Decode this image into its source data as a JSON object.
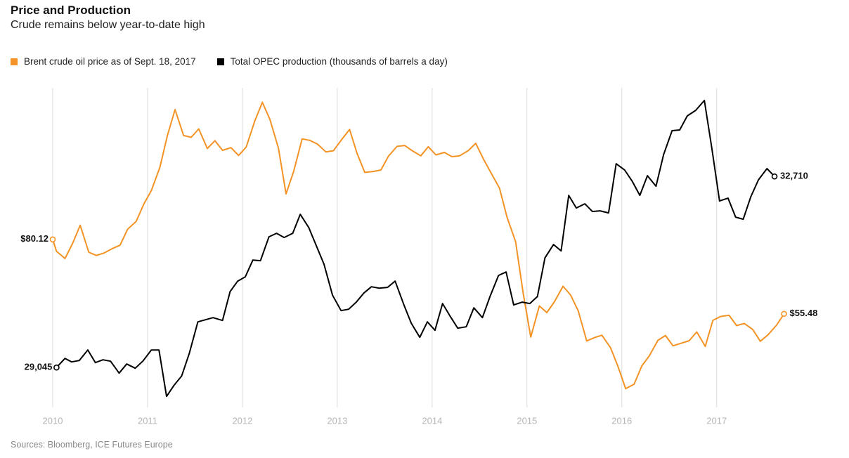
{
  "chart_data": {
    "type": "line",
    "title": "Price and Production",
    "subtitle": "Crude remains below year-to-date high",
    "source": "Sources: Bloomberg, ICE Futures Europe",
    "xlim": [
      2010,
      2017.78
    ],
    "xticks": [
      2010,
      2011,
      2012,
      2013,
      2014,
      2015,
      2016,
      2017
    ],
    "ylim": [
      24.5,
      130.3
    ],
    "y2lim": [
      28280,
      34410
    ],
    "grid": true,
    "legend": "top-left",
    "series": [
      {
        "name": "Brent crude oil price as of Sept. 18, 2017",
        "color": "#f39325",
        "x": [
          2010,
          2010.04,
          2010.13,
          2010.21,
          2010.29,
          2010.38,
          2010.46,
          2010.54,
          2010.63,
          2010.71,
          2010.79,
          2010.88,
          2010.96,
          2011.04,
          2011.13,
          2011.21,
          2011.29,
          2011.38,
          2011.46,
          2011.54,
          2011.63,
          2011.71,
          2011.79,
          2011.88,
          2011.96,
          2012.04,
          2012.13,
          2012.21,
          2012.29,
          2012.38,
          2012.46,
          2012.54,
          2012.63,
          2012.71,
          2012.79,
          2012.88,
          2012.96,
          2013.04,
          2013.13,
          2013.21,
          2013.29,
          2013.38,
          2013.46,
          2013.54,
          2013.63,
          2013.71,
          2013.79,
          2013.88,
          2013.96,
          2014.04,
          2014.13,
          2014.21,
          2014.29,
          2014.38,
          2014.46,
          2014.54,
          2014.63,
          2014.71,
          2014.79,
          2014.88,
          2014.96,
          2015.04,
          2015.13,
          2015.21,
          2015.29,
          2015.38,
          2015.46,
          2015.54,
          2015.63,
          2015.71,
          2015.79,
          2015.88,
          2015.96,
          2016.04,
          2016.13,
          2016.21,
          2016.29,
          2016.38,
          2016.46,
          2016.54,
          2016.63,
          2016.71,
          2016.79,
          2016.88,
          2016.96,
          2017.04,
          2017.13,
          2017.21,
          2017.29,
          2017.38,
          2017.46,
          2017.54,
          2017.63,
          2017.71
        ],
        "values": [
          80.12,
          76.2,
          73.8,
          78.8,
          84.8,
          75.9,
          74.8,
          75.6,
          77.1,
          78.2,
          83.5,
          86.1,
          91.8,
          96.3,
          104,
          114.6,
          123.1,
          114.5,
          113.9,
          116.7,
          110.2,
          112.8,
          109.6,
          110.5,
          107.9,
          110.7,
          119.3,
          125.5,
          119.8,
          110.3,
          95.2,
          102.6,
          113.4,
          112.9,
          111.7,
          109.1,
          109.5,
          112.9,
          116.5,
          108.5,
          102.3,
          102.6,
          103.1,
          107.7,
          110.9,
          111.2,
          109.5,
          107.8,
          110.8,
          108.1,
          108.9,
          107.5,
          107.8,
          109.5,
          111.9,
          106.8,
          101.6,
          97.1,
          87.4,
          79.4,
          62.3,
          47.8,
          58.1,
          55.9,
          59.5,
          64.6,
          61.7,
          56.5,
          46.5,
          47.6,
          48.4,
          44.3,
          38.0,
          30.7,
          32.2,
          38.2,
          41.6,
          46.7,
          48.3,
          44.9,
          45.8,
          46.6,
          49.5,
          44.7,
          53.3,
          54.6,
          55.0,
          51.6,
          52.3,
          50.3,
          46.4,
          48.5,
          51.7,
          55.48
        ],
        "value_labels": [
          "$80.12",
          null,
          null,
          null,
          null,
          null,
          null,
          null,
          null,
          null,
          null,
          null,
          null,
          null,
          null,
          null,
          null,
          null,
          null,
          null,
          null,
          null,
          null,
          null,
          null,
          null,
          null,
          null,
          null,
          null,
          null,
          null,
          null,
          null,
          null,
          null,
          null,
          null,
          null,
          null,
          null,
          null,
          null,
          null,
          null,
          null,
          null,
          null,
          null,
          null,
          null,
          null,
          null,
          null,
          null,
          null,
          null,
          null,
          null,
          null,
          null,
          null,
          null,
          null,
          null,
          null,
          null,
          null,
          null,
          null,
          null,
          null,
          null,
          null,
          null,
          null,
          null,
          null,
          null,
          null,
          null,
          null,
          null,
          null,
          null,
          null,
          null,
          null,
          null,
          null,
          null,
          null,
          null,
          "$55.48"
        ]
      },
      {
        "name": "Total OPEC production (thousands of barrels a day)",
        "color": "#000000",
        "axis": "y2",
        "x": [
          2010.04,
          2010.13,
          2010.2,
          2010.28,
          2010.37,
          2010.45,
          2010.53,
          2010.61,
          2010.7,
          2010.78,
          2010.87,
          2010.95,
          2011.04,
          2011.12,
          2011.2,
          2011.28,
          2011.36,
          2011.44,
          2011.53,
          2011.61,
          2011.69,
          2011.79,
          2011.87,
          2011.95,
          2012.03,
          2012.11,
          2012.19,
          2012.28,
          2012.36,
          2012.44,
          2012.53,
          2012.61,
          2012.7,
          2012.78,
          2012.86,
          2012.95,
          2013.04,
          2013.12,
          2013.2,
          2013.28,
          2013.36,
          2013.44,
          2013.53,
          2013.61,
          2013.7,
          2013.78,
          2013.87,
          2013.95,
          2014.03,
          2014.11,
          2014.19,
          2014.27,
          2014.36,
          2014.44,
          2014.53,
          2014.61,
          2014.7,
          2014.78,
          2014.86,
          2014.95,
          2015.03,
          2015.11,
          2015.19,
          2015.28,
          2015.36,
          2015.44,
          2015.52,
          2015.61,
          2015.69,
          2015.77,
          2015.86,
          2015.94,
          2016.03,
          2016.11,
          2016.19,
          2016.27,
          2016.36,
          2016.44,
          2016.53,
          2016.61,
          2016.69,
          2016.78,
          2016.87,
          2016.95,
          2017.03,
          2017.12,
          2017.2,
          2017.28,
          2017.36,
          2017.44,
          2017.53,
          2017.61
        ],
        "values": [
          29045,
          29220,
          29153,
          29180,
          29382,
          29139,
          29193,
          29166,
          28937,
          29112,
          29032,
          29166,
          29382,
          29382,
          28492,
          28708,
          28883,
          29315,
          29921,
          29962,
          30002,
          29948,
          30501,
          30703,
          30784,
          31107,
          31094,
          31552,
          31620,
          31539,
          31620,
          31984,
          31728,
          31377,
          31027,
          30433,
          30137,
          30164,
          30299,
          30474,
          30595,
          30568,
          30582,
          30703,
          30258,
          29894,
          29625,
          29921,
          29759,
          30272,
          30029,
          29800,
          29827,
          30191,
          30002,
          30407,
          30811,
          30878,
          30245,
          30299,
          30272,
          30407,
          31148,
          31404,
          31282,
          32348,
          32105,
          32186,
          32038,
          32051,
          32011,
          32954,
          32833,
          32617,
          32348,
          32725,
          32523,
          33129,
          33588,
          33601,
          33871,
          33979,
          34167,
          33237,
          32240,
          32294,
          31930,
          31889,
          32321,
          32644,
          32860,
          32710
        ],
        "value_labels": [
          "29,045",
          null,
          null,
          null,
          null,
          null,
          null,
          null,
          null,
          null,
          null,
          null,
          null,
          null,
          null,
          null,
          null,
          null,
          null,
          null,
          null,
          null,
          null,
          null,
          null,
          null,
          null,
          null,
          null,
          null,
          null,
          null,
          null,
          null,
          null,
          null,
          null,
          null,
          null,
          null,
          null,
          null,
          null,
          null,
          null,
          null,
          null,
          null,
          null,
          null,
          null,
          null,
          null,
          null,
          null,
          null,
          null,
          null,
          null,
          null,
          null,
          null,
          null,
          null,
          null,
          null,
          null,
          null,
          null,
          null,
          null,
          null,
          null,
          null,
          null,
          null,
          null,
          null,
          null,
          null,
          null,
          null,
          null,
          null,
          null,
          null,
          null,
          null,
          null,
          null,
          null,
          "32,710"
        ]
      }
    ]
  }
}
